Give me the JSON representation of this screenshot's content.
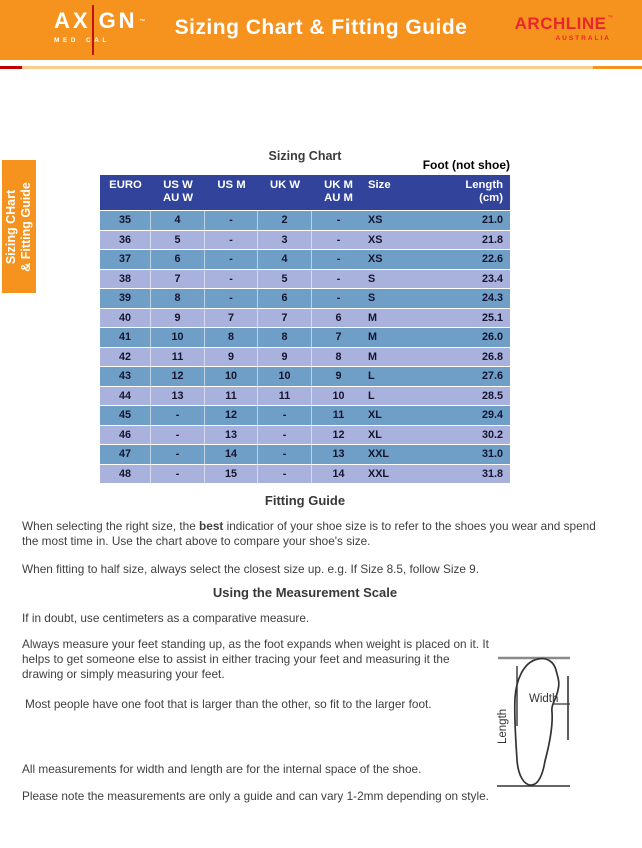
{
  "header": {
    "axign": {
      "left": "AX",
      "right": "GN",
      "tm": "™",
      "sub_left": "MED",
      "sub_right": "CAL"
    },
    "title": "Sizing Chart & Fitting Guide",
    "archline": {
      "name": "ARCHLINE",
      "tm": "™",
      "subtitle": "AUSTRALIA"
    }
  },
  "side_tab": {
    "line1": "Sizing CHart",
    "line2": "& Fitting Guide"
  },
  "sizing_chart": {
    "title": "Sizing Chart",
    "note": "Foot (not shoe)",
    "columns": [
      {
        "line1": "EURO",
        "line2": ""
      },
      {
        "line1": "US W",
        "line2": "AU W"
      },
      {
        "line1": "US M",
        "line2": ""
      },
      {
        "line1": "UK W",
        "line2": ""
      },
      {
        "line1": "UK M",
        "line2": "AU M"
      },
      {
        "line1": "Size",
        "line2": ""
      },
      {
        "line1": "Length",
        "line2": "(cm)"
      }
    ],
    "rows": [
      [
        "35",
        "4",
        "-",
        "2",
        "-",
        "XS",
        "21.0"
      ],
      [
        "36",
        "5",
        "-",
        "3",
        "-",
        "XS",
        "21.8"
      ],
      [
        "37",
        "6",
        "-",
        "4",
        "-",
        "XS",
        "22.6"
      ],
      [
        "38",
        "7",
        "-",
        "5",
        "-",
        "S",
        "23.4"
      ],
      [
        "39",
        "8",
        "-",
        "6",
        "-",
        "S",
        "24.3"
      ],
      [
        "40",
        "9",
        "7",
        "7",
        "6",
        "M",
        "25.1"
      ],
      [
        "41",
        "10",
        "8",
        "8",
        "7",
        "M",
        "26.0"
      ],
      [
        "42",
        "11",
        "9",
        "9",
        "8",
        "M",
        "26.8"
      ],
      [
        "43",
        "12",
        "10",
        "10",
        "9",
        "L",
        "27.6"
      ],
      [
        "44",
        "13",
        "11",
        "11",
        "10",
        "L",
        "28.5"
      ],
      [
        "45",
        "-",
        "12",
        "-",
        "11",
        "XL",
        "29.4"
      ],
      [
        "46",
        "-",
        "13",
        "-",
        "12",
        "XL",
        "30.2"
      ],
      [
        "47",
        "-",
        "14",
        "-",
        "13",
        "XXL",
        "31.0"
      ],
      [
        "48",
        "-",
        "15",
        "-",
        "14",
        "XXL",
        "31.8"
      ]
    ]
  },
  "fitting_guide": {
    "title": "Fitting Guide",
    "p1_before": "When selecting the right size, the ",
    "p1_bold": "best",
    "p1_after": " indicatior of your shoe size is to refer to the shoes you wear and spend the most time in. Use the chart above to compare your shoe's size.",
    "p2": "When fitting to half size, always select the closest size up. e.g. If Size 8.5, follow Size 9."
  },
  "measurement_scale": {
    "title": "Using the Measurement Scale",
    "p1": "If in doubt, use centimeters as a comparative measure.",
    "p2": "Always measure your feet standing up, as the foot expands when weight is placed on it. It helps to get someone else to assist in either tracing your feet and measuring it the drawing or simply measuring your feet.",
    "p3": "Most people have one foot that is larger than the other, so fit to the larger foot.",
    "p4": "All measurements for width and length are for the internal space of the shoe.",
    "p5": "Please note the measurements are only a guide and can vary 1-2mm depending on style."
  },
  "foot_diagram": {
    "width_label": "Width",
    "length_label": "Length"
  },
  "colors": {
    "band_orange": "#F6921E",
    "rule_red": "#C00000",
    "rule_pale": "#FACB8E",
    "archline_red": "#E8262D",
    "table_header_navy": "#31439A",
    "row_dark": "#6F9EC6",
    "row_light": "#A9B1DD"
  }
}
